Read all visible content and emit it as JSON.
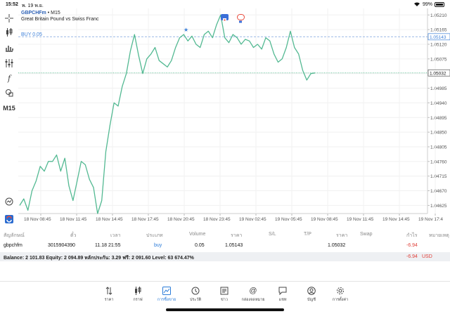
{
  "status": {
    "time": "15:52",
    "date": "พ. 19 พ.ย.",
    "battery": "99%"
  },
  "toolbar": {
    "timeframe": "M15"
  },
  "chart": {
    "symbol": "GBPCHFm",
    "timeframe_suffix": "• M15",
    "description": "Great Britain Pound vs Swiss Franc",
    "buy_label": "BUY 0.05",
    "buy_price_label": "1.05143",
    "current_price_label": "1.05032",
    "line_color": "#53b992",
    "buy_line_color": "#9db9e6",
    "current_line_color": "#5fbf94"
  },
  "chart_data": {
    "type": "line",
    "title": "",
    "xlabel": "",
    "ylabel": "",
    "x_tick_labels": [
      "18 Nov 08:45",
      "18 Nov 11:45",
      "18 Nov 14:45",
      "18 Nov 17:45",
      "18 Nov 20:45",
      "18 Nov 23:45",
      "19 Nov 02:45",
      "19 Nov 05:45",
      "19 Nov 08:45",
      "19 Nov 11:45",
      "19 Nov 14:45",
      "19 Nov 17:4"
    ],
    "y_tick_labels": [
      "1.05210",
      "1.05165",
      "1.05120",
      "1.05075",
      "1.05030",
      "1.04985",
      "1.04940",
      "1.04895",
      "1.04850",
      "1.04805",
      "1.04760",
      "1.04715",
      "1.04670",
      "1.04625"
    ],
    "ylim": [
      1.046,
      1.0523
    ],
    "grid": true,
    "series": [
      {
        "values": [
          1.04625,
          1.04645,
          1.0461,
          1.0467,
          1.047,
          1.04745,
          1.0473,
          1.0476,
          1.0476,
          1.0478,
          1.0473,
          1.0477,
          1.04685,
          1.0464,
          1.047,
          1.0476,
          1.0475,
          1.04705,
          1.0468,
          1.046,
          1.0464,
          1.0479,
          1.0487,
          1.0494,
          1.0493,
          1.0499,
          1.0503,
          1.051,
          1.0515,
          1.05085,
          1.0503,
          1.05075,
          1.0509,
          1.0511,
          1.0507,
          1.0506,
          1.0505,
          1.0507,
          1.0511,
          1.0514,
          1.0515,
          1.0513,
          1.05145,
          1.0512,
          1.0511,
          1.0515,
          1.0516,
          1.0514,
          1.0518,
          1.0521,
          1.0514,
          1.05125,
          1.0515,
          1.0514,
          1.0512,
          1.05135,
          1.0513,
          1.0511,
          1.0512,
          1.05105,
          1.0514,
          1.0513,
          1.0509,
          1.05065,
          1.05075,
          1.0511,
          1.0516,
          1.0511,
          1.0509,
          1.0504,
          1.0501,
          1.0503,
          1.05032
        ]
      }
    ]
  },
  "table": {
    "headers": [
      "สัญลักษณ์",
      "ตั๋ว",
      "เวลา",
      "ประเภท",
      "Volume",
      "ราคา",
      "S/L",
      "T/P",
      "ราคา",
      "Swap",
      "กำไร",
      "หมายเหตุ"
    ],
    "row": [
      "gbpchfm",
      "3015904390",
      "11.18 21:55",
      "buy",
      "0.05",
      "1.05143",
      "",
      "",
      "1.05032",
      "",
      "-6.94",
      ""
    ]
  },
  "balance": {
    "text": "Balance: 2 101.83 Equity: 2 094.89 หลักประกัน: 3.29 ฟรี: 2 091.60 Level: 63 674.47%",
    "profit": "-6.94",
    "currency": "USD"
  },
  "nav": [
    {
      "label": "ราคา",
      "icon": "quotes-icon"
    },
    {
      "label": "กราฟ",
      "icon": "chart-icon"
    },
    {
      "label": "การซื้อขาย",
      "icon": "trade-icon",
      "active": true
    },
    {
      "label": "ประวัติ",
      "icon": "history-icon"
    },
    {
      "label": "ข่าว",
      "icon": "news-icon"
    },
    {
      "label": "กล่องจดหมาย",
      "icon": "mailbox-icon"
    },
    {
      "label": "แชท",
      "icon": "chat-icon"
    },
    {
      "label": "บัญชี",
      "icon": "account-icon"
    },
    {
      "label": "การตั้งค่า",
      "icon": "settings-icon"
    }
  ]
}
